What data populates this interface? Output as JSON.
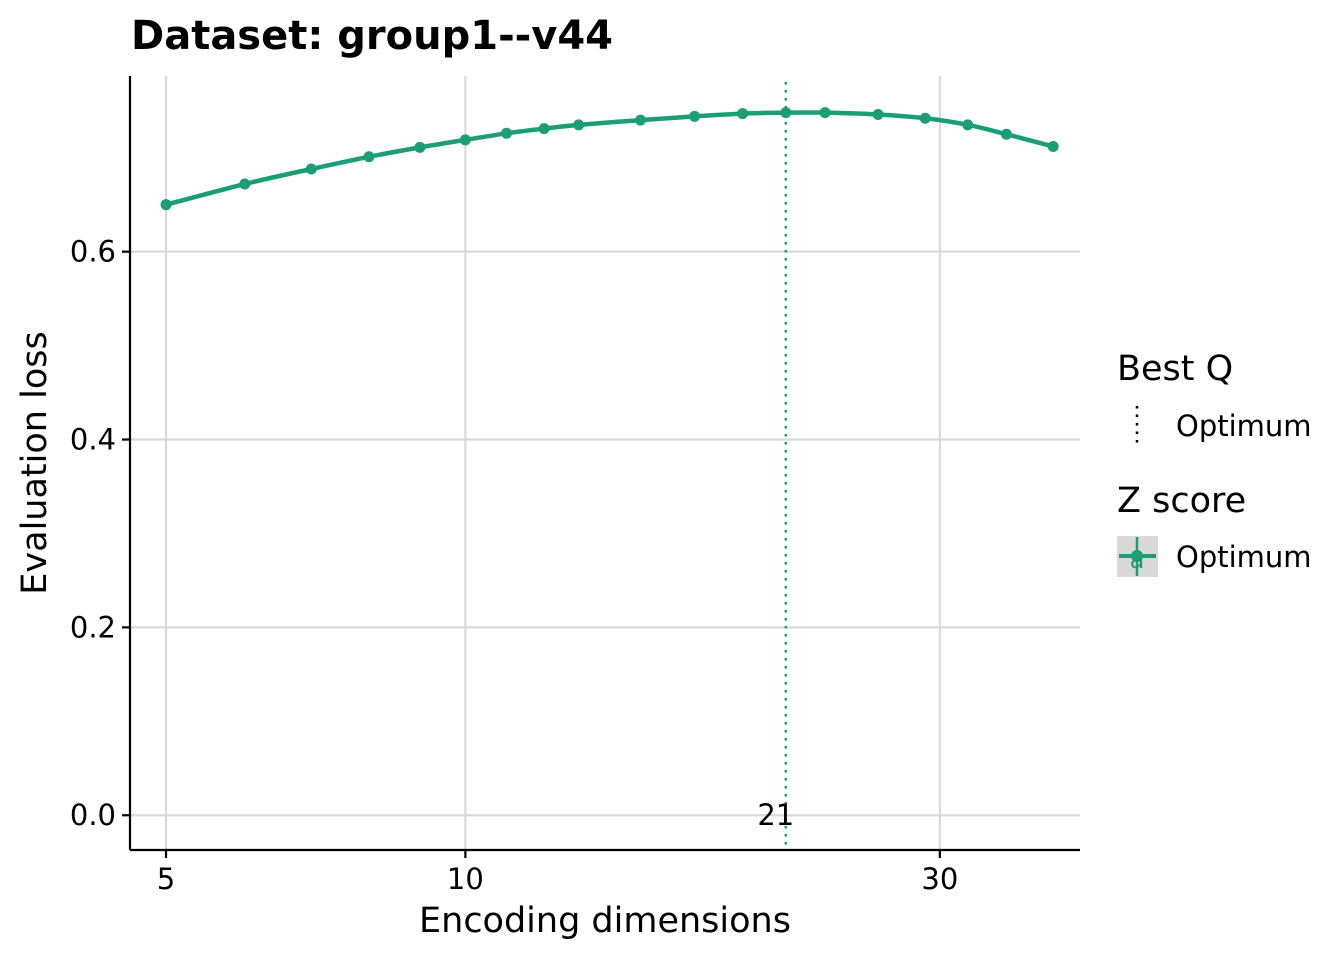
{
  "chart_data": {
    "type": "line",
    "title": "Dataset: group1--v44",
    "xlabel": "Encoding dimensions",
    "ylabel": "Evaluation loss",
    "x_scale": "log",
    "xlim": [
      4.6,
      41.5
    ],
    "ylim": [
      -0.037,
      0.787
    ],
    "x_ticks": [
      5,
      10,
      30
    ],
    "y_ticks": [
      0.0,
      0.2,
      0.4,
      0.6
    ],
    "y_tick_labels": [
      "0.0",
      "0.2",
      "0.4",
      "0.6"
    ],
    "grid": true,
    "series": [
      {
        "name": "Optimum",
        "color": "#1b9e77",
        "x": [
          5,
          6,
          7,
          8,
          9,
          10,
          11,
          12,
          13,
          15,
          17,
          19,
          21,
          23,
          26,
          29,
          32,
          35,
          39
        ],
        "y": [
          0.65,
          0.672,
          0.688,
          0.701,
          0.711,
          0.719,
          0.726,
          0.731,
          0.735,
          0.74,
          0.744,
          0.747,
          0.748,
          0.748,
          0.746,
          0.742,
          0.735,
          0.725,
          0.712
        ]
      }
    ],
    "optimum": {
      "x": 21,
      "label": "21",
      "color": "#1b9e77"
    },
    "legend": {
      "position": "right",
      "groups": [
        {
          "title": "Best Q",
          "label": "Optimum",
          "key": "dotted-line"
        },
        {
          "title": "Z score",
          "label": "Optimum",
          "key": "point-line",
          "key_text": "a"
        }
      ]
    }
  }
}
